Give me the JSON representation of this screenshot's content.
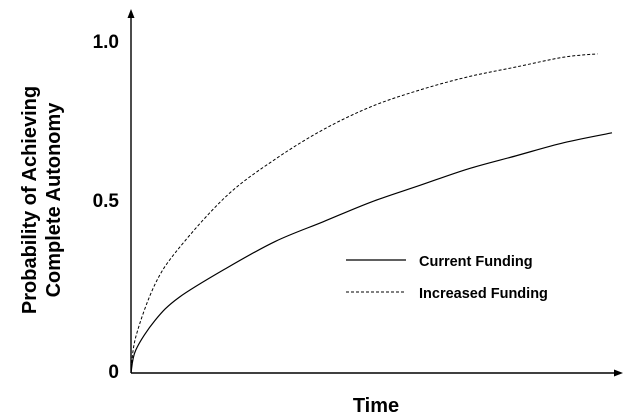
{
  "chart_data": {
    "type": "line",
    "title": "",
    "xlabel": "Time",
    "ylabel_lines": [
      "Probability of Achieving",
      "Complete Autonomy"
    ],
    "ylim": [
      0,
      1.0
    ],
    "y_ticks": [
      {
        "value": 0,
        "label": "0"
      },
      {
        "value": 0.5,
        "label": "0.5"
      },
      {
        "value": 1.0,
        "label": "1.0"
      }
    ],
    "x_ticks": [],
    "grid": false,
    "legend": "center-right",
    "series": [
      {
        "name": "Current Funding",
        "style": "solid",
        "color": "#000000",
        "x": [
          0,
          0.01,
          0.05,
          0.1,
          0.2,
          0.3,
          0.4,
          0.5,
          0.6,
          0.7,
          0.8,
          0.9,
          1.0
        ],
        "values": [
          0,
          0.07,
          0.16,
          0.23,
          0.32,
          0.4,
          0.46,
          0.52,
          0.57,
          0.62,
          0.66,
          0.7,
          0.73
        ]
      },
      {
        "name": "Increased Funding",
        "style": "dashed",
        "color": "#000000",
        "x": [
          0,
          0.01,
          0.05,
          0.1,
          0.2,
          0.3,
          0.4,
          0.5,
          0.6,
          0.7,
          0.8,
          0.9,
          0.97
        ],
        "values": [
          0,
          0.11,
          0.27,
          0.38,
          0.54,
          0.65,
          0.74,
          0.81,
          0.86,
          0.9,
          0.93,
          0.96,
          0.97
        ]
      }
    ]
  }
}
